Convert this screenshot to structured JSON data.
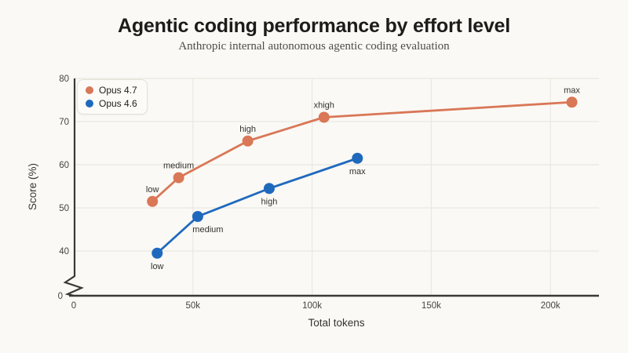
{
  "page": {
    "background": "#faf9f5"
  },
  "chart_data": {
    "type": "line",
    "title": "Agentic coding performance by effort level",
    "subtitle": "Anthropic internal autonomous agentic coding evaluation",
    "xlabel": "Total tokens",
    "ylabel": "Score (%)",
    "x_ticks": [
      {
        "value": 0,
        "label": "0"
      },
      {
        "value": 50000,
        "label": "50k"
      },
      {
        "value": 100000,
        "label": "100k"
      },
      {
        "value": 150000,
        "label": "150k"
      },
      {
        "value": 200000,
        "label": "200k"
      }
    ],
    "y_ticks": [
      {
        "value": 0,
        "label": "0"
      },
      {
        "value": 40,
        "label": "40"
      },
      {
        "value": 50,
        "label": "50"
      },
      {
        "value": 60,
        "label": "60"
      },
      {
        "value": 70,
        "label": "70"
      },
      {
        "value": 80,
        "label": "80"
      }
    ],
    "y_axis_break_between": [
      0,
      40
    ],
    "xlim": [
      0,
      220000
    ],
    "ylim": [
      0,
      80
    ],
    "grid": true,
    "legend_position": "top-left",
    "colors": {
      "background": "#faf9f5",
      "grid": "#ebe8e1",
      "axis": "#3a3935",
      "tick_text": "#45443f",
      "axis_label_text": "#35342f",
      "point_label_text": "#32312d",
      "title": "#1d1c1a",
      "subtitle": "#4d4c47",
      "legend_bg": "#fcfbf7",
      "legend_border": "#e4e1d8"
    },
    "series": [
      {
        "name": "Opus 4.7",
        "color": "#d97757",
        "label_side": "above",
        "points": [
          {
            "label": "low",
            "x": 33000,
            "y": 51.5
          },
          {
            "label": "medium",
            "x": 44000,
            "y": 57
          },
          {
            "label": "high",
            "x": 73000,
            "y": 65.5
          },
          {
            "label": "xhigh",
            "x": 105000,
            "y": 71
          },
          {
            "label": "max",
            "x": 209000,
            "y": 74.5
          }
        ]
      },
      {
        "name": "Opus 4.6",
        "color": "#1f69bd",
        "label_side": "below",
        "points": [
          {
            "label": "low",
            "x": 35000,
            "y": 39.5
          },
          {
            "label": "medium",
            "x": 52000,
            "y": 48,
            "label_dx": 13
          },
          {
            "label": "high",
            "x": 82000,
            "y": 54.5
          },
          {
            "label": "max",
            "x": 119000,
            "y": 61.5
          }
        ]
      }
    ]
  }
}
